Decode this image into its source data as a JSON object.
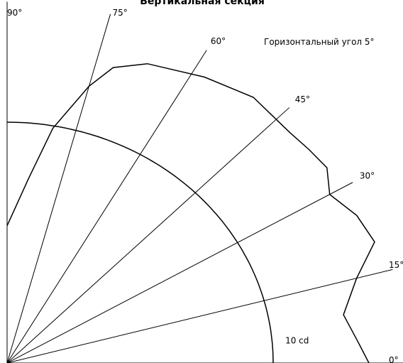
{
  "chart_data": {
    "type": "polar",
    "title": "Вертикальная секция",
    "annotation": "Горизонтальный угол 5°",
    "x": [
      90,
      84,
      80,
      75,
      72,
      67,
      58,
      50,
      42,
      38,
      34,
      30,
      25,
      20,
      15,
      9,
      4,
      0
    ],
    "values": [
      5.7,
      7.7,
      9.9,
      11.9,
      12.9,
      13.5,
      14.0,
      14.4,
      14.3,
      14.4,
      14.5,
      14.0,
      14.5,
      14.7,
      13.6,
      12.8,
      13.2,
      13.6
    ],
    "color": "#000000",
    "angle_ticks": [
      {
        "value": 0,
        "label": "0°"
      },
      {
        "value": 15,
        "label": "15°"
      },
      {
        "value": 30,
        "label": "30°"
      },
      {
        "value": 45,
        "label": "45°"
      },
      {
        "value": 60,
        "label": "60°"
      },
      {
        "value": 75,
        "label": "75°"
      },
      {
        "value": 90,
        "label": "90°"
      }
    ],
    "rlim": [
      0,
      15
    ],
    "rticks": [
      {
        "value": 10,
        "label": "10 cd"
      }
    ]
  }
}
